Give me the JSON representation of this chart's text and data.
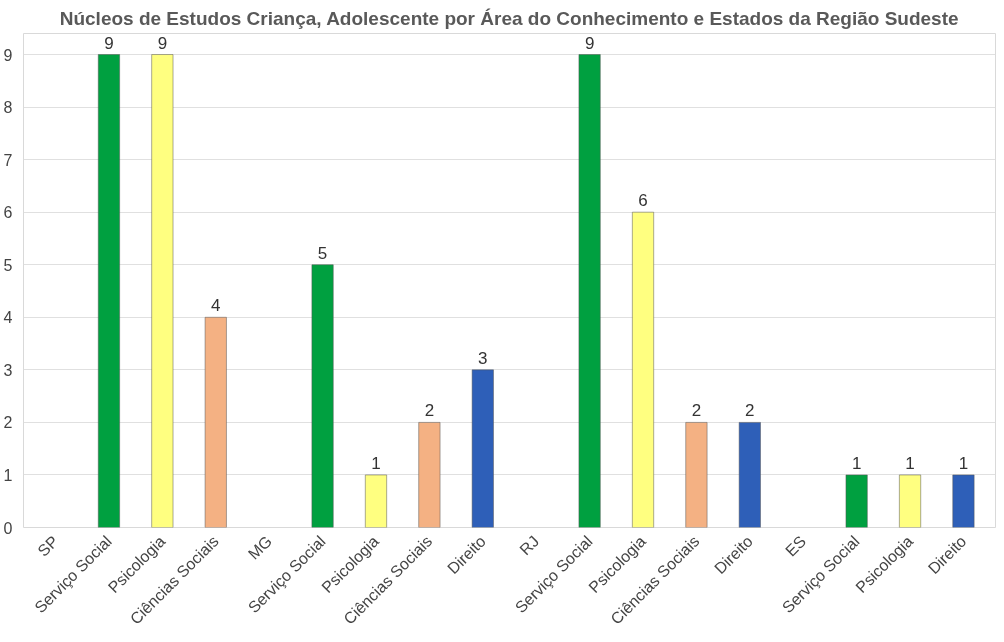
{
  "chart_data": {
    "type": "bar",
    "title": "Núcleos de Estudos Criança, Adolescente por Área do Conhecimento e Estados da Região Sudeste",
    "categories": [
      "SP",
      "Serviço Social",
      "Psicologia",
      "Ciências Sociais",
      "MG",
      "Serviço Social",
      "Psicologia",
      "Ciências Sociais",
      "Direito",
      "RJ",
      "Serviço Social",
      "Psicologia",
      "Ciências Sociais",
      "Direito",
      "ES",
      "Serviço Social",
      "Psicologia",
      "Direito"
    ],
    "values": [
      null,
      9,
      9,
      4,
      null,
      5,
      1,
      2,
      3,
      null,
      9,
      6,
      2,
      2,
      null,
      1,
      1,
      1
    ],
    "colors": [
      "#00a040",
      "#00a040",
      "#ffff80",
      "#f4b183",
      "#00a040",
      "#00a040",
      "#ffff80",
      "#f4b183",
      "#2e5fb8",
      "#00a040",
      "#00a040",
      "#ffff80",
      "#f4b183",
      "#2e5fb8",
      "#00a040",
      "#00a040",
      "#ffff80",
      "#2e5fb8"
    ],
    "ylim": [
      0,
      9.4
    ],
    "yticks": [
      0,
      1,
      2,
      3,
      4,
      5,
      6,
      7,
      8,
      9
    ],
    "grid": "y",
    "data_labels": true
  }
}
